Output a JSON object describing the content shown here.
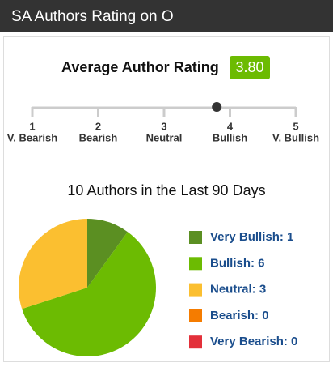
{
  "header": {
    "title": "SA Authors Rating on O"
  },
  "rating": {
    "title": "Average Author Rating",
    "value": 3.8,
    "value_label": "3.80",
    "scale": [
      {
        "value": 1,
        "name": "V. Bearish"
      },
      {
        "value": 2,
        "name": "Bearish"
      },
      {
        "value": 3,
        "name": "Neutral"
      },
      {
        "value": 4,
        "name": "Bullish"
      },
      {
        "value": 5,
        "name": "V. Bullish"
      }
    ]
  },
  "chart_data": {
    "type": "pie",
    "title": "10 Authors in the Last 90 Days",
    "categories": [
      "Very Bullish: 1",
      "Bullish: 6",
      "Neutral: 3",
      "Bearish: 0",
      "Very Bearish: 0"
    ],
    "values": [
      1,
      6,
      3,
      0,
      0
    ],
    "colors": [
      "#5b8f22",
      "#6cbb02",
      "#fbbf30",
      "#f57c00",
      "#e3303a"
    ],
    "legend": "right"
  }
}
